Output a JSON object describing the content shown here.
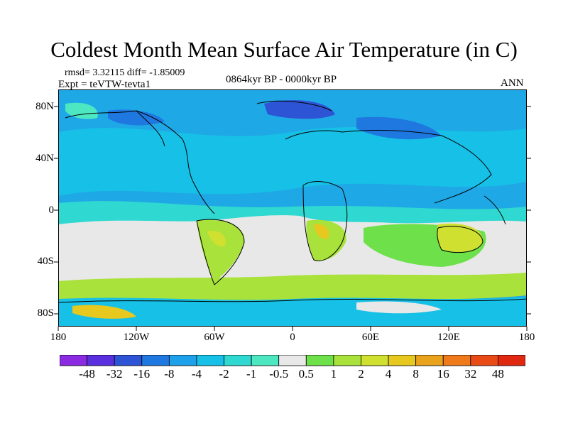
{
  "title": "Coldest Month Mean Surface Air Temperature (in C)",
  "stats": "rmsd= 3.32115 diff= -1.85009",
  "experiment": "Expt = teVTW-tevta1",
  "period": "0864kyr BP - 0000kyr BP",
  "season": "ANN",
  "lat_labels": [
    "80N",
    "40N",
    "0",
    "40S",
    "80S"
  ],
  "lon_labels": [
    "180",
    "120W",
    "60W",
    "0",
    "60E",
    "120E",
    "180"
  ],
  "colorbar": {
    "labels": [
      "-48",
      "-32",
      "-16",
      "-8",
      "-4",
      "-2",
      "-1",
      "-0.5",
      "0.5",
      "1",
      "2",
      "4",
      "8",
      "16",
      "32",
      "48"
    ],
    "colors": [
      "#8a2be2",
      "#5a2fe0",
      "#2e54d6",
      "#1f78e0",
      "#1ea0ea",
      "#17c0e6",
      "#2fd8d0",
      "#4de8c2",
      "#e8e8e8",
      "#6de04a",
      "#a8e23a",
      "#cfe030",
      "#e6c81f",
      "#e8a21c",
      "#ee7a1c",
      "#e84b16",
      "#e02810"
    ]
  },
  "colors": {
    "ocean_base": "#1fa8e6",
    "neutral": "#e8e8e8",
    "coastline": "#000000"
  }
}
